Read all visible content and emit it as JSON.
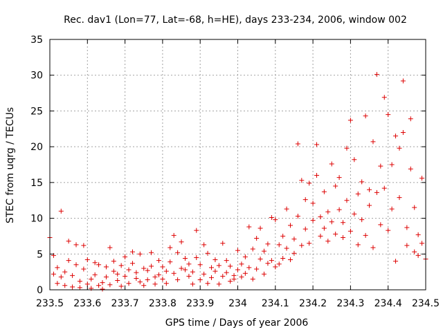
{
  "chart_data": {
    "type": "scatter",
    "title": "Rec. dav1 (Lon=77, Lat=-68, h=HE), days 233-234, 2006, window 002",
    "xlabel": "GPS time / Days of year 2006",
    "ylabel": "STEC from uqrg / TECUs",
    "xlim": [
      233.5,
      234.5
    ],
    "ylim": [
      0,
      35
    ],
    "xticks": [
      233.5,
      233.6,
      233.7,
      233.8,
      233.9,
      234,
      234.1,
      234.2,
      234.3,
      234.4,
      234.5
    ],
    "xtick_labels": [
      "233.5",
      "233.6",
      "233.7",
      "233.8",
      "233.9",
      "234",
      "234.1",
      "234.2",
      "234.3",
      "234.4",
      "234.5"
    ],
    "yticks": [
      0,
      5,
      10,
      15,
      20,
      25,
      30,
      35
    ],
    "ytick_labels": [
      "0",
      "5",
      "10",
      "15",
      "20",
      "25",
      "30",
      "35"
    ],
    "grid": true,
    "marker": "+",
    "color": "#dd0000",
    "series": [
      {
        "points": [
          [
            233.5,
            7.3
          ],
          [
            233.51,
            2.2
          ],
          [
            233.51,
            4.8
          ],
          [
            233.52,
            0.9
          ],
          [
            233.52,
            3.1
          ],
          [
            233.53,
            11.0
          ],
          [
            233.53,
            1.8
          ],
          [
            233.54,
            0.6
          ],
          [
            233.54,
            2.5
          ],
          [
            233.55,
            6.8
          ],
          [
            233.55,
            4.1
          ],
          [
            233.56,
            0.4
          ],
          [
            233.56,
            2.0
          ],
          [
            233.57,
            6.3
          ],
          [
            233.57,
            3.5
          ],
          [
            233.58,
            1.2
          ],
          [
            233.58,
            0.3
          ],
          [
            233.59,
            6.2
          ],
          [
            233.59,
            2.9
          ],
          [
            233.6,
            0.8
          ],
          [
            233.6,
            4.2
          ],
          [
            233.61,
            1.5
          ],
          [
            233.61,
            0.2
          ],
          [
            233.62,
            3.8
          ],
          [
            233.62,
            2.1
          ],
          [
            233.63,
            0.6
          ],
          [
            233.63,
            3.5
          ],
          [
            233.64,
            1.0
          ],
          [
            233.64,
            0.1
          ],
          [
            233.65,
            3.2
          ],
          [
            233.65,
            1.8
          ],
          [
            233.66,
            5.9
          ],
          [
            233.66,
            0.7
          ],
          [
            233.67,
            2.6
          ],
          [
            233.67,
            4.0
          ],
          [
            233.68,
            1.3
          ],
          [
            233.68,
            2.2
          ],
          [
            233.69,
            0.5
          ],
          [
            233.69,
            3.4
          ],
          [
            233.7,
            4.6
          ],
          [
            233.7,
            1.9
          ],
          [
            233.71,
            2.8
          ],
          [
            233.71,
            0.9
          ],
          [
            233.72,
            5.3
          ],
          [
            233.72,
            3.7
          ],
          [
            233.73,
            1.6
          ],
          [
            233.73,
            2.4
          ],
          [
            233.74,
            5.0
          ],
          [
            233.74,
            1.1
          ],
          [
            233.75,
            3.0
          ],
          [
            233.75,
            0.6
          ],
          [
            233.76,
            2.7
          ],
          [
            233.76,
            1.4
          ],
          [
            233.77,
            5.2
          ],
          [
            233.77,
            3.3
          ],
          [
            233.78,
            1.8
          ],
          [
            233.78,
            0.8
          ],
          [
            233.79,
            2.1
          ],
          [
            233.79,
            4.1
          ],
          [
            233.8,
            1.5
          ],
          [
            233.8,
            3.2
          ],
          [
            233.81,
            0.9
          ],
          [
            233.81,
            2.6
          ],
          [
            233.82,
            5.9
          ],
          [
            233.82,
            3.9
          ],
          [
            233.83,
            7.6
          ],
          [
            233.83,
            2.3
          ],
          [
            233.84,
            5.2
          ],
          [
            233.84,
            1.4
          ],
          [
            233.85,
            3.0
          ],
          [
            233.85,
            6.7
          ],
          [
            233.86,
            2.8
          ],
          [
            233.86,
            4.4
          ],
          [
            233.87,
            1.9
          ],
          [
            233.87,
            3.6
          ],
          [
            233.88,
            0.8
          ],
          [
            233.88,
            2.5
          ],
          [
            233.89,
            8.3
          ],
          [
            233.89,
            4.5
          ],
          [
            233.9,
            1.4
          ],
          [
            233.9,
            3.5
          ],
          [
            233.91,
            6.3
          ],
          [
            233.91,
            2.2
          ],
          [
            233.92,
            0.9
          ],
          [
            233.92,
            5.1
          ],
          [
            233.93,
            3.1
          ],
          [
            233.93,
            1.7
          ],
          [
            233.94,
            4.2
          ],
          [
            233.94,
            2.6
          ],
          [
            233.95,
            0.8
          ],
          [
            233.95,
            3.4
          ],
          [
            233.96,
            6.5
          ],
          [
            233.96,
            1.9
          ],
          [
            233.97,
            4.1
          ],
          [
            233.97,
            2.4
          ],
          [
            233.98,
            1.2
          ],
          [
            233.98,
            3.3
          ],
          [
            233.99,
            2.0
          ],
          [
            233.99,
            1.5
          ],
          [
            234.0,
            2.8
          ],
          [
            234.0,
            5.5
          ],
          [
            234.01,
            1.8
          ],
          [
            234.01,
            3.6
          ],
          [
            234.02,
            4.6
          ],
          [
            234.02,
            2.3
          ],
          [
            234.03,
            8.8
          ],
          [
            234.03,
            3.1
          ],
          [
            234.04,
            1.5
          ],
          [
            234.04,
            5.7
          ],
          [
            234.05,
            7.2
          ],
          [
            234.05,
            2.9
          ],
          [
            234.06,
            8.6
          ],
          [
            234.06,
            4.3
          ],
          [
            234.07,
            2.2
          ],
          [
            234.07,
            5.4
          ],
          [
            234.08,
            3.7
          ],
          [
            234.08,
            6.4
          ],
          [
            234.09,
            10.1
          ],
          [
            234.09,
            4.1
          ],
          [
            234.1,
            3.2
          ],
          [
            234.1,
            9.8
          ],
          [
            234.11,
            6.3
          ],
          [
            234.11,
            3.6
          ],
          [
            234.12,
            7.5
          ],
          [
            234.12,
            4.4
          ],
          [
            234.13,
            11.3
          ],
          [
            234.13,
            5.8
          ],
          [
            234.14,
            9.0
          ],
          [
            234.14,
            4.2
          ],
          [
            234.15,
            7.1
          ],
          [
            234.15,
            5.1
          ],
          [
            234.16,
            10.3
          ],
          [
            234.16,
            20.4
          ],
          [
            234.17,
            15.3
          ],
          [
            234.17,
            6.2
          ],
          [
            234.18,
            12.6
          ],
          [
            234.18,
            8.5
          ],
          [
            234.19,
            14.9
          ],
          [
            234.19,
            6.5
          ],
          [
            234.2,
            12.1
          ],
          [
            234.2,
            9.7
          ],
          [
            234.21,
            20.3
          ],
          [
            234.21,
            16.0
          ],
          [
            234.22,
            10.2
          ],
          [
            234.22,
            7.5
          ],
          [
            234.23,
            13.7
          ],
          [
            234.23,
            8.6
          ],
          [
            234.24,
            10.9
          ],
          [
            234.24,
            6.8
          ],
          [
            234.25,
            17.6
          ],
          [
            234.25,
            9.5
          ],
          [
            234.26,
            14.5
          ],
          [
            234.26,
            7.8
          ],
          [
            234.27,
            15.7
          ],
          [
            234.27,
            11.2
          ],
          [
            234.28,
            9.4
          ],
          [
            234.28,
            7.3
          ],
          [
            234.29,
            19.8
          ],
          [
            234.29,
            12.5
          ],
          [
            234.3,
            23.7
          ],
          [
            234.3,
            8.2
          ],
          [
            234.31,
            18.2
          ],
          [
            234.31,
            10.6
          ],
          [
            234.32,
            13.4
          ],
          [
            234.32,
            6.3
          ],
          [
            234.33,
            15.1
          ],
          [
            234.33,
            9.8
          ],
          [
            234.34,
            24.3
          ],
          [
            234.34,
            7.6
          ],
          [
            234.35,
            14.0
          ],
          [
            234.35,
            11.8
          ],
          [
            234.36,
            20.7
          ],
          [
            234.36,
            5.9
          ],
          [
            234.37,
            30.1
          ],
          [
            234.37,
            13.6
          ],
          [
            234.38,
            17.3
          ],
          [
            234.38,
            9.1
          ],
          [
            234.39,
            26.9
          ],
          [
            234.39,
            14.2
          ],
          [
            234.4,
            24.5
          ],
          [
            234.4,
            8.3
          ],
          [
            234.41,
            17.5
          ],
          [
            234.41,
            11.3
          ],
          [
            234.42,
            21.5
          ],
          [
            234.42,
            4.0
          ],
          [
            234.43,
            19.8
          ],
          [
            234.43,
            12.9
          ],
          [
            234.44,
            29.2
          ],
          [
            234.44,
            22.0
          ],
          [
            234.45,
            8.7
          ],
          [
            234.45,
            6.2
          ],
          [
            234.46,
            23.9
          ],
          [
            234.46,
            16.9
          ],
          [
            234.47,
            11.5
          ],
          [
            234.47,
            5.3
          ],
          [
            234.48,
            7.7
          ],
          [
            234.48,
            4.8
          ],
          [
            234.49,
            15.6
          ],
          [
            234.49,
            6.5
          ],
          [
            234.5,
            4.3
          ]
        ]
      }
    ]
  }
}
